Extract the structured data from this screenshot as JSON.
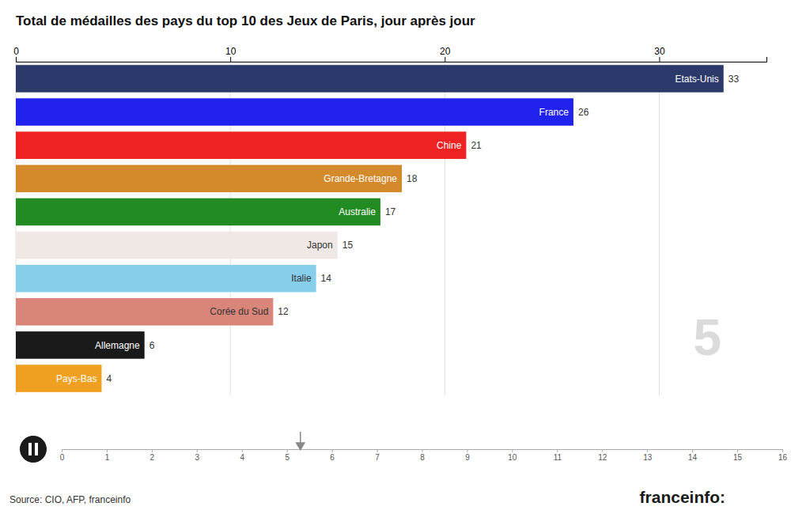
{
  "chart_data": [
    {
      "type": "bar",
      "title": "Total de médailles des pays du top 10 des Jeux de Paris, jour après jour",
      "orientation": "horizontal",
      "categories": [
        "Pays-Bas",
        "Allemagne",
        "Corée du Sud",
        "Italie",
        "Japon",
        "Australie",
        "Grande-Bretagne",
        "Chine",
        "France",
        "Etats-Unis"
      ],
      "values": [
        4,
        6,
        12,
        14,
        15,
        17,
        18,
        21,
        26,
        33
      ],
      "colors": [
        "#F0A020",
        "#1A1A1A",
        "#D9857A",
        "#87CEEB",
        "#F0E8E5",
        "#228B22",
        "#D4892A",
        "#EE2222",
        "#2222EE",
        "#2B3A6B"
      ],
      "xlim": [
        0,
        35
      ],
      "xticks": [
        0,
        10,
        20,
        30
      ],
      "grid": true,
      "data_labels": true,
      "tick_labels": "x",
      "annotations": [
        "5",
        "Source: CIO, AFP, franceinfo",
        "franceinfo:"
      ]
    },
    {
      "type": "timeline",
      "xlim": [
        0,
        16
      ],
      "xticks": [
        0,
        1,
        2,
        3,
        4,
        5,
        6,
        7,
        8,
        9,
        10,
        11,
        12,
        13,
        14,
        15,
        16
      ],
      "values": [
        5.3
      ],
      "tick_labels": "x"
    }
  ]
}
